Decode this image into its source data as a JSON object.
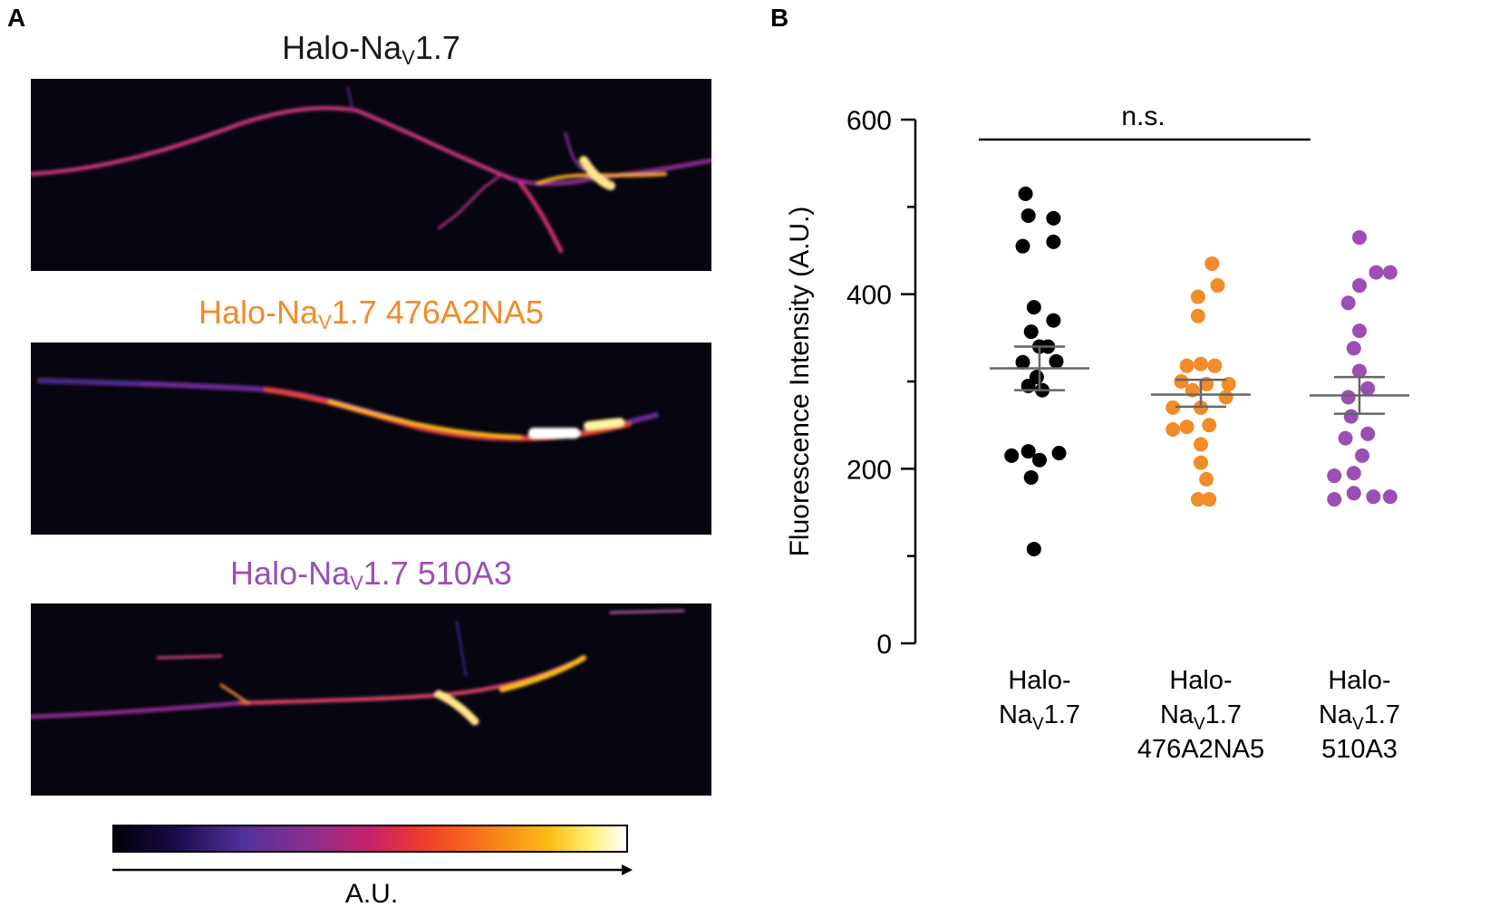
{
  "panels": {
    "A": {
      "letter": "A",
      "images": [
        {
          "title_prefix": "Halo-Na",
          "title_sub": "V",
          "title_suffix": "1.7",
          "color": "#1a1a1a"
        },
        {
          "title_prefix": "Halo-Na",
          "title_sub": "V",
          "title_suffix": "1.7 476A2NA5",
          "color": "#f28c28"
        },
        {
          "title_prefix": "Halo-Na",
          "title_sub": "V",
          "title_suffix": "1.7 510A3",
          "color": "#9b4fb5"
        }
      ],
      "colorbar_label": "A.U."
    },
    "B": {
      "letter": "B"
    }
  },
  "chart_data": {
    "type": "scatter",
    "title": "",
    "xlabel": "",
    "ylabel": "Fluorescence Intensity (A.U.)",
    "ylim": [
      0,
      600
    ],
    "yticks": [
      0,
      200,
      400,
      600
    ],
    "annotation": "n.s.",
    "categories": [
      {
        "lines": [
          "Halo-",
          "Na|V|1.7"
        ]
      },
      {
        "lines": [
          "Halo-",
          "Na|V|1.7",
          "476A2NA5"
        ]
      },
      {
        "lines": [
          "Halo-",
          "Na|V|1.7",
          "510A3"
        ]
      }
    ],
    "series": [
      {
        "name": "Halo-NaV1.7",
        "color": "#000000",
        "mean": 315,
        "sem_upper": 340,
        "sem_lower": 290,
        "points": [
          {
            "dx": -0.25,
            "y": 515
          },
          {
            "dx": -0.2,
            "y": 490
          },
          {
            "dx": 0.25,
            "y": 487
          },
          {
            "dx": -0.3,
            "y": 455
          },
          {
            "dx": 0.25,
            "y": 460
          },
          {
            "dx": -0.1,
            "y": 385
          },
          {
            "dx": 0.25,
            "y": 370
          },
          {
            "dx": -0.15,
            "y": 357
          },
          {
            "dx": 0.0,
            "y": 340
          },
          {
            "dx": 0.15,
            "y": 340
          },
          {
            "dx": -0.3,
            "y": 322
          },
          {
            "dx": 0.3,
            "y": 323
          },
          {
            "dx": -0.05,
            "y": 305
          },
          {
            "dx": -0.2,
            "y": 295
          },
          {
            "dx": 0.05,
            "y": 290
          },
          {
            "dx": -0.5,
            "y": 215
          },
          {
            "dx": -0.2,
            "y": 220
          },
          {
            "dx": 0.35,
            "y": 218
          },
          {
            "dx": 0.0,
            "y": 210
          },
          {
            "dx": -0.15,
            "y": 190
          },
          {
            "dx": -0.1,
            "y": 108
          }
        ]
      },
      {
        "name": "Halo-NaV1.7 476A2NA5",
        "color": "#f28c28",
        "mean": 285,
        "sem_upper": 302,
        "sem_lower": 271,
        "points": [
          {
            "dx": 0.2,
            "y": 435
          },
          {
            "dx": 0.3,
            "y": 410
          },
          {
            "dx": -0.05,
            "y": 397
          },
          {
            "dx": -0.05,
            "y": 375
          },
          {
            "dx": -0.25,
            "y": 318
          },
          {
            "dx": 0.0,
            "y": 320
          },
          {
            "dx": 0.25,
            "y": 318
          },
          {
            "dx": -0.35,
            "y": 300
          },
          {
            "dx": 0.1,
            "y": 297
          },
          {
            "dx": 0.5,
            "y": 297
          },
          {
            "dx": -0.15,
            "y": 290
          },
          {
            "dx": 0.45,
            "y": 282
          },
          {
            "dx": -0.5,
            "y": 270
          },
          {
            "dx": 0.0,
            "y": 270
          },
          {
            "dx": -0.5,
            "y": 245
          },
          {
            "dx": -0.25,
            "y": 248
          },
          {
            "dx": 0.15,
            "y": 250
          },
          {
            "dx": 0.0,
            "y": 228
          },
          {
            "dx": 0.0,
            "y": 207
          },
          {
            "dx": 0.1,
            "y": 188
          },
          {
            "dx": -0.05,
            "y": 165
          },
          {
            "dx": 0.15,
            "y": 165
          }
        ]
      },
      {
        "name": "Halo-NaV1.7 510A3",
        "color": "#9b4fb5",
        "mean": 284,
        "sem_upper": 305,
        "sem_lower": 263,
        "points": [
          {
            "dx": 0.0,
            "y": 465
          },
          {
            "dx": 0.3,
            "y": 425
          },
          {
            "dx": 0.55,
            "y": 425
          },
          {
            "dx": 0.0,
            "y": 410
          },
          {
            "dx": -0.2,
            "y": 390
          },
          {
            "dx": 0.0,
            "y": 358
          },
          {
            "dx": -0.1,
            "y": 338
          },
          {
            "dx": 0.0,
            "y": 312
          },
          {
            "dx": 0.15,
            "y": 292
          },
          {
            "dx": -0.2,
            "y": 282
          },
          {
            "dx": -0.15,
            "y": 260
          },
          {
            "dx": 0.15,
            "y": 240
          },
          {
            "dx": -0.25,
            "y": 235
          },
          {
            "dx": 0.05,
            "y": 215
          },
          {
            "dx": -0.1,
            "y": 195
          },
          {
            "dx": -0.45,
            "y": 192
          },
          {
            "dx": -0.1,
            "y": 172
          },
          {
            "dx": -0.45,
            "y": 165
          },
          {
            "dx": 0.25,
            "y": 168
          },
          {
            "dx": 0.55,
            "y": 168
          }
        ]
      }
    ]
  }
}
